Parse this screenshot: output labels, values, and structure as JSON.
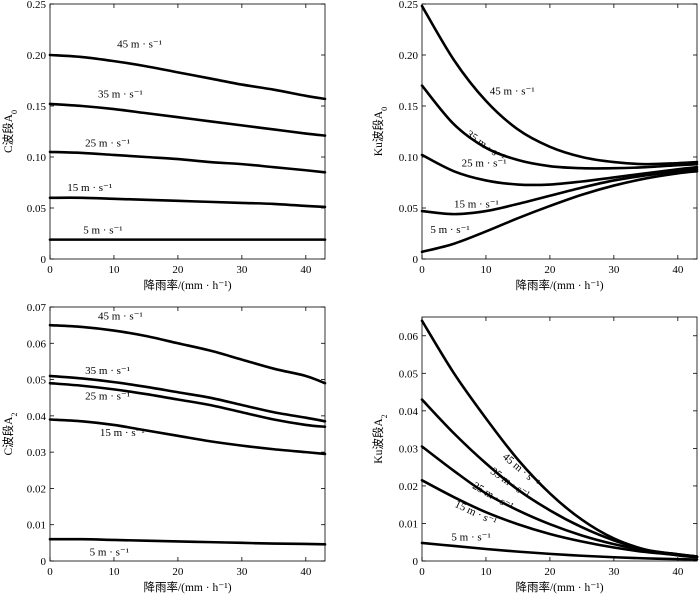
{
  "chart_data": [
    {
      "type": "line",
      "id": "c-a0",
      "xlabel": "降雨率/(mm · h⁻¹)",
      "ylabel_prefix": "C波段A",
      "ylabel_sub": "0",
      "xlim": [
        0,
        43
      ],
      "ylim": [
        0,
        0.25
      ],
      "xticks": [
        0,
        10,
        20,
        30,
        40
      ],
      "yticks": [
        0,
        0.05,
        0.1,
        0.15,
        0.2,
        0.25
      ],
      "ytick_labels": [
        "0",
        "0.05",
        "0.10",
        "0.15",
        "0.20",
        "0.25"
      ],
      "series": [
        {
          "name": "45 m · s⁻¹",
          "x": [
            0,
            5,
            10,
            15,
            20,
            25,
            30,
            35,
            40,
            43
          ],
          "y": [
            0.2,
            0.198,
            0.194,
            0.189,
            0.183,
            0.177,
            0.171,
            0.166,
            0.16,
            0.157
          ],
          "label_x": 10.5,
          "label_y": 0.2075
        },
        {
          "name": "35 m · s⁻¹",
          "x": [
            0,
            5,
            10,
            15,
            20,
            25,
            30,
            35,
            40,
            43
          ],
          "y": [
            0.152,
            0.15,
            0.147,
            0.143,
            0.139,
            0.135,
            0.131,
            0.127,
            0.123,
            0.121
          ],
          "label_x": 7.5,
          "label_y": 0.1585
        },
        {
          "name": "25 m · s⁻¹",
          "x": [
            0,
            5,
            10,
            15,
            20,
            25,
            30,
            35,
            40,
            43
          ],
          "y": [
            0.105,
            0.104,
            0.102,
            0.1,
            0.098,
            0.095,
            0.093,
            0.09,
            0.087,
            0.085
          ],
          "label_x": 5.5,
          "label_y": 0.1105
        },
        {
          "name": "15 m · s⁻¹",
          "x": [
            0,
            5,
            10,
            15,
            20,
            25,
            30,
            35,
            40,
            43
          ],
          "y": [
            0.06,
            0.06,
            0.059,
            0.058,
            0.057,
            0.056,
            0.055,
            0.054,
            0.052,
            0.051
          ],
          "label_x": 2.7,
          "label_y": 0.0665
        },
        {
          "name": "5 m · s⁻¹",
          "x": [
            0,
            10,
            20,
            30,
            43
          ],
          "y": [
            0.019,
            0.019,
            0.019,
            0.019,
            0.019
          ],
          "label_x": 5.2,
          "label_y": 0.025
        }
      ]
    },
    {
      "type": "line",
      "id": "ku-a0",
      "xlabel": "降雨率/(mm · h⁻¹)",
      "ylabel_prefix": "Ku波段A",
      "ylabel_sub": "0",
      "xlim": [
        0,
        43
      ],
      "ylim": [
        0,
        0.25
      ],
      "xticks": [
        0,
        10,
        20,
        30,
        40
      ],
      "yticks": [
        0,
        0.05,
        0.1,
        0.15,
        0.2,
        0.25
      ],
      "ytick_labels": [
        "0",
        "0.05",
        "0.10",
        "0.15",
        "0.20",
        "0.25"
      ],
      "series": [
        {
          "name": "45 m · s⁻¹",
          "x": [
            0,
            5,
            10,
            15,
            20,
            25,
            30,
            35,
            40,
            43
          ],
          "y": [
            0.248,
            0.195,
            0.155,
            0.127,
            0.11,
            0.1,
            0.095,
            0.093,
            0.094,
            0.095
          ],
          "label_x": 10.6,
          "label_y": 0.1615
        },
        {
          "name": "35 m · s⁻¹",
          "x": [
            0,
            5,
            10,
            15,
            20,
            25,
            30,
            35,
            40,
            43
          ],
          "y": [
            0.17,
            0.132,
            0.109,
            0.097,
            0.091,
            0.089,
            0.089,
            0.09,
            0.092,
            0.093
          ],
          "label_x": 6.8,
          "label_y": 0.121,
          "rotate": 35
        },
        {
          "name": "25 m · s⁻¹",
          "x": [
            0,
            5,
            10,
            15,
            20,
            25,
            30,
            35,
            40,
            43
          ],
          "y": [
            0.102,
            0.086,
            0.077,
            0.073,
            0.073,
            0.076,
            0.08,
            0.084,
            0.088,
            0.09
          ],
          "label_x": 6.2,
          "label_y": 0.0905
        },
        {
          "name": "15 m · s⁻¹",
          "x": [
            0,
            5,
            10,
            15,
            20,
            25,
            30,
            35,
            40,
            43
          ],
          "y": [
            0.047,
            0.044,
            0.047,
            0.054,
            0.062,
            0.07,
            0.077,
            0.082,
            0.086,
            0.088
          ],
          "label_x": 5.0,
          "label_y": 0.0505
        },
        {
          "name": "5 m · s⁻¹",
          "x": [
            0,
            5,
            10,
            15,
            20,
            25,
            30,
            35,
            40,
            43
          ],
          "y": [
            0.007,
            0.015,
            0.027,
            0.04,
            0.052,
            0.063,
            0.072,
            0.079,
            0.084,
            0.086
          ],
          "label_x": 1.3,
          "label_y": 0.0255
        }
      ]
    },
    {
      "type": "line",
      "id": "c-a2",
      "xlabel": "降雨率/(mm · h⁻¹)",
      "ylabel_prefix": "C波段A",
      "ylabel_sub": "2",
      "xlim": [
        0,
        43
      ],
      "ylim": [
        0,
        0.07
      ],
      "xticks": [
        0,
        10,
        20,
        30,
        40
      ],
      "yticks": [
        0,
        0.01,
        0.02,
        0.03,
        0.04,
        0.05,
        0.06,
        0.07
      ],
      "ytick_labels": [
        "0",
        "0.01",
        "0.02",
        "0.03",
        "0.04",
        "0.05",
        "0.06",
        "0.07"
      ],
      "series": [
        {
          "name": "45   m · s⁻¹",
          "x": [
            0,
            5,
            10,
            15,
            20,
            25,
            30,
            35,
            40,
            43
          ],
          "y": [
            0.065,
            0.0645,
            0.0635,
            0.062,
            0.06,
            0.058,
            0.0555,
            0.053,
            0.051,
            0.049
          ],
          "label_x": 7.5,
          "label_y": 0.0665
        },
        {
          "name": "35 m · s⁻¹",
          "x": [
            0,
            5,
            10,
            15,
            20,
            25,
            30,
            35,
            40,
            43
          ],
          "y": [
            0.051,
            0.0503,
            0.0493,
            0.048,
            0.0465,
            0.045,
            0.043,
            0.041,
            0.0395,
            0.0385
          ],
          "label_x": 5.5,
          "label_y": 0.0515
        },
        {
          "name": "25   m · s⁻¹",
          "x": [
            0,
            5,
            10,
            15,
            20,
            25,
            30,
            35,
            40,
            43
          ],
          "y": [
            0.049,
            0.0483,
            0.0473,
            0.046,
            0.0445,
            0.043,
            0.041,
            0.039,
            0.0375,
            0.037
          ],
          "label_x": 5.5,
          "label_y": 0.0445
        },
        {
          "name": "15 m · s⁻¹",
          "x": [
            0,
            5,
            10,
            15,
            20,
            25,
            30,
            35,
            40,
            43
          ],
          "y": [
            0.039,
            0.0385,
            0.0375,
            0.036,
            0.0345,
            0.033,
            0.0318,
            0.0308,
            0.03,
            0.0295
          ],
          "label_x": 7.8,
          "label_y": 0.0345
        },
        {
          "name": "5 m · s⁻¹",
          "x": [
            0,
            5,
            10,
            15,
            20,
            25,
            30,
            35,
            40,
            43
          ],
          "y": [
            0.006,
            0.006,
            0.0058,
            0.0056,
            0.0054,
            0.0052,
            0.005,
            0.0048,
            0.0047,
            0.0046
          ],
          "label_x": 6.2,
          "label_y": 0.0015
        }
      ]
    },
    {
      "type": "line",
      "id": "ku-a2",
      "xlabel": "降雨率/(mm · h⁻¹)",
      "ylabel_prefix": "Ku波段A",
      "ylabel_sub": "2",
      "xlim": [
        0,
        43
      ],
      "ylim": [
        0,
        0.065
      ],
      "xticks": [
        0,
        10,
        20,
        30,
        40
      ],
      "yticks": [
        0,
        0.01,
        0.02,
        0.03,
        0.04,
        0.05,
        0.06
      ],
      "ytick_labels": [
        "0",
        "0.01",
        "0.02",
        "0.03",
        "0.04",
        "0.05",
        "0.06"
      ],
      "series": [
        {
          "name": "45 m · s⁻¹",
          "x": [
            0,
            5,
            10,
            15,
            20,
            25,
            30,
            35,
            40,
            43
          ],
          "y": [
            0.064,
            0.05,
            0.038,
            0.027,
            0.018,
            0.011,
            0.006,
            0.003,
            0.0015,
            0.001
          ],
          "label_x": 12.5,
          "label_y": 0.0275,
          "rotate": 40
        },
        {
          "name": "35 m · s⁻¹",
          "x": [
            0,
            5,
            10,
            15,
            20,
            25,
            30,
            35,
            40,
            43
          ],
          "y": [
            0.043,
            0.034,
            0.026,
            0.019,
            0.0135,
            0.009,
            0.0055,
            0.003,
            0.0018,
            0.0012
          ],
          "label_x": 10.6,
          "label_y": 0.0235,
          "rotate": 35
        },
        {
          "name": "25 m · s⁻¹",
          "x": [
            0,
            5,
            10,
            15,
            20,
            25,
            30,
            35,
            40,
            43
          ],
          "y": [
            0.0305,
            0.024,
            0.018,
            0.0135,
            0.0098,
            0.0068,
            0.0045,
            0.0028,
            0.0018,
            0.0012
          ],
          "label_x": 7.8,
          "label_y": 0.0195,
          "rotate": 30
        },
        {
          "name": "15 m · s⁻¹",
          "x": [
            0,
            5,
            10,
            15,
            20,
            25,
            30,
            35,
            40,
            43
          ],
          "y": [
            0.0215,
            0.017,
            0.013,
            0.0098,
            0.0072,
            0.0052,
            0.0036,
            0.0024,
            0.0016,
            0.0011
          ],
          "label_x": 5.0,
          "label_y": 0.0145,
          "rotate": 25
        },
        {
          "name": "5 m · s⁻¹",
          "x": [
            0,
            5,
            10,
            15,
            20,
            25,
            30,
            35,
            40,
            43
          ],
          "y": [
            0.0048,
            0.004,
            0.0032,
            0.0025,
            0.0019,
            0.0014,
            0.001,
            0.0007,
            0.0005,
            0.0004
          ],
          "label_x": 4.6,
          "label_y": 0.0055
        }
      ]
    }
  ]
}
